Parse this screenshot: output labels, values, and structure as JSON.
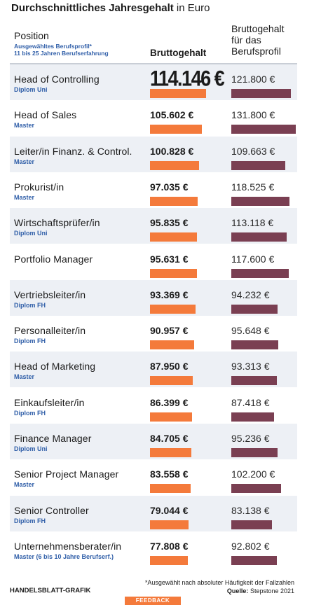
{
  "title": {
    "bold": "Durchschnittliches Jahresgehalt",
    "rest": "in Euro"
  },
  "headers": {
    "position": "Position",
    "note_line1": "Ausgewähltes Berufsprofil*",
    "note_line2": "11 bis 25 Jahren Berufserfahrung",
    "brutto": "Bruttogehalt",
    "profil_line1": "Bruttogehalt",
    "profil_line2": "für das",
    "profil_line3": "Berufsprofil"
  },
  "chart_data": {
    "type": "bar",
    "series": [
      {
        "name": "Bruttogehalt",
        "color": "#f47a3b"
      },
      {
        "name": "Bruttogehalt für das Berufsprofil",
        "color": "#7a3f52"
      }
    ],
    "bar_max_value": 131800,
    "rows": [
      {
        "name": "Head of Controlling",
        "degree": "Diplom Uni",
        "salary": 114146,
        "salary_label": "114.146 €",
        "profil": 121800,
        "profil_label": "121.800 €"
      },
      {
        "name": "Head of Sales",
        "degree": "Master",
        "salary": 105602,
        "salary_label": "105.602 €",
        "profil": 131800,
        "profil_label": "131.800 €"
      },
      {
        "name": "Leiter/in Finanz. & Control.",
        "degree": "Master",
        "salary": 100828,
        "salary_label": "100.828 €",
        "profil": 109663,
        "profil_label": "109.663 €"
      },
      {
        "name": "Prokurist/in",
        "degree": "Master",
        "salary": 97035,
        "salary_label": "97.035 €",
        "profil": 118525,
        "profil_label": "118.525 €"
      },
      {
        "name": "Wirtschaftsprüfer/in",
        "degree": "Diplom Uni",
        "salary": 95835,
        "salary_label": "95.835 €",
        "profil": 113118,
        "profil_label": "113.118 €"
      },
      {
        "name": "Portfolio Manager",
        "degree": "",
        "salary": 95631,
        "salary_label": "95.631 €",
        "profil": 117600,
        "profil_label": "117.600 €"
      },
      {
        "name": "Vertriebsleiter/in",
        "degree": "Diplom FH",
        "salary": 93369,
        "salary_label": "93.369 €",
        "profil": 94232,
        "profil_label": "94.232 €"
      },
      {
        "name": "Personalleiter/in",
        "degree": "Diplom FH",
        "salary": 90957,
        "salary_label": "90.957 €",
        "profil": 95648,
        "profil_label": "95.648 €"
      },
      {
        "name": "Head of Marketing",
        "degree": "Master",
        "salary": 87950,
        "salary_label": "87.950 €",
        "profil": 93313,
        "profil_label": "93.313 €"
      },
      {
        "name": "Einkaufsleiter/in",
        "degree": "Diplom FH",
        "salary": 86399,
        "salary_label": "86.399 €",
        "profil": 87418,
        "profil_label": "87.418 €"
      },
      {
        "name": "Finance Manager",
        "degree": "Diplom Uni",
        "salary": 84705,
        "salary_label": "84.705 €",
        "profil": 95236,
        "profil_label": "95.236 €"
      },
      {
        "name": "Senior Project Manager",
        "degree": "Master",
        "salary": 83558,
        "salary_label": "83.558 €",
        "profil": 102200,
        "profil_label": "102.200 €"
      },
      {
        "name": "Senior Controller",
        "degree": "Diplom FH",
        "salary": 79044,
        "salary_label": "79.044 €",
        "profil": 83138,
        "profil_label": "83.138 €"
      },
      {
        "name": "Unternehmensberater/in",
        "degree": "Master (6 bis 10 Jahre Berufserf.)",
        "salary": 77808,
        "salary_label": "77.808 €",
        "profil": 92802,
        "profil_label": "92.802 €"
      }
    ]
  },
  "footer": {
    "brand": "HANDELSBLATT-GRAFIK",
    "note": "*Ausgewählt nach absoluter Häufigkeit der Fallzahlen",
    "source_label": "Quelle:",
    "source_value": "Stepstone 2021",
    "feedback": "FEEDBACK"
  }
}
